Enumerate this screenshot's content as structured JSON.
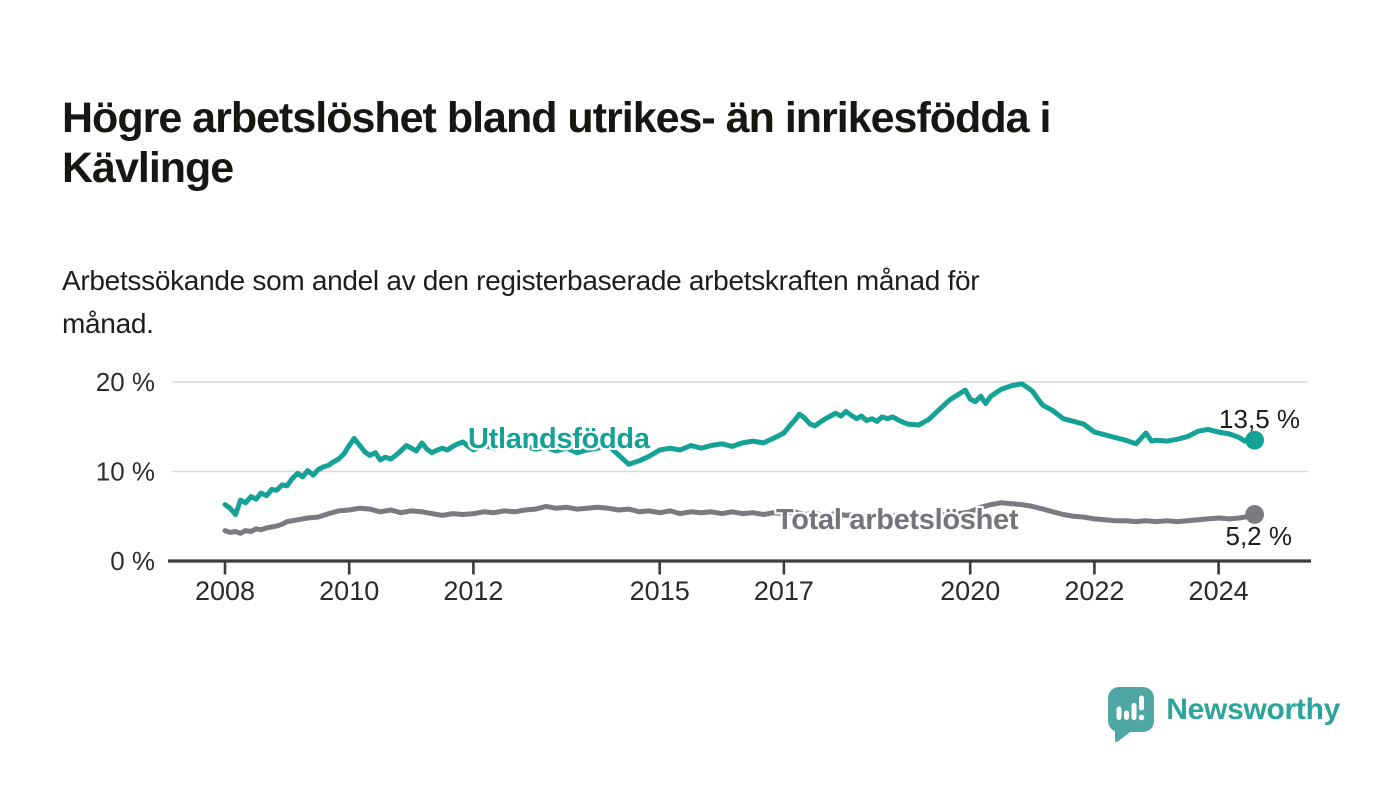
{
  "header": {
    "title_lines": [
      "Högre arbetslöshet bland utrikes- än inrikesfödda i",
      "Kävlinge"
    ],
    "subtitle_lines": [
      "Arbetssökande som andel av den registerbaserade arbetskraften månad för",
      "månad."
    ]
  },
  "chart_data": {
    "type": "line",
    "title": "Högre arbetslöshet bland utrikes- än inrikesfödda i Kävlinge",
    "subtitle": "Arbetssökande som andel av den registerbaserade arbetskraften månad för månad.",
    "unit": "%",
    "grid": "horizontal",
    "x_range": [
      2007.1,
      2025.4
    ],
    "y_range": [
      0,
      21
    ],
    "x_ticks": [
      2008,
      2010,
      2012,
      2015,
      2017,
      2020,
      2022,
      2024
    ],
    "y_ticks": [
      {
        "value": 0,
        "label": "0 %"
      },
      {
        "value": 10,
        "label": "10 %"
      },
      {
        "value": 20,
        "label": "20 %"
      }
    ],
    "series": [
      {
        "name": "Utlandsfödda",
        "label": "Utlandsfödda",
        "color": "#15a296",
        "end_label": "13,5 %",
        "end_value": 13.5,
        "points": [
          [
            2008.0,
            6.3
          ],
          [
            2008.08,
            5.9
          ],
          [
            2008.17,
            5.2
          ],
          [
            2008.25,
            6.8
          ],
          [
            2008.33,
            6.5
          ],
          [
            2008.42,
            7.2
          ],
          [
            2008.5,
            6.9
          ],
          [
            2008.58,
            7.6
          ],
          [
            2008.67,
            7.3
          ],
          [
            2008.75,
            8.0
          ],
          [
            2008.83,
            7.9
          ],
          [
            2008.92,
            8.5
          ],
          [
            2009.0,
            8.4
          ],
          [
            2009.08,
            9.2
          ],
          [
            2009.17,
            9.8
          ],
          [
            2009.25,
            9.4
          ],
          [
            2009.33,
            10.1
          ],
          [
            2009.42,
            9.6
          ],
          [
            2009.5,
            10.2
          ],
          [
            2009.58,
            10.5
          ],
          [
            2009.67,
            10.7
          ],
          [
            2009.75,
            11.1
          ],
          [
            2009.83,
            11.4
          ],
          [
            2009.92,
            12.0
          ],
          [
            2010.0,
            12.9
          ],
          [
            2010.08,
            13.7
          ],
          [
            2010.17,
            12.9
          ],
          [
            2010.25,
            12.2
          ],
          [
            2010.33,
            11.8
          ],
          [
            2010.42,
            12.1
          ],
          [
            2010.5,
            11.3
          ],
          [
            2010.58,
            11.6
          ],
          [
            2010.67,
            11.4
          ],
          [
            2010.75,
            11.8
          ],
          [
            2010.83,
            12.3
          ],
          [
            2010.92,
            12.9
          ],
          [
            2011.0,
            12.6
          ],
          [
            2011.08,
            12.3
          ],
          [
            2011.17,
            13.2
          ],
          [
            2011.25,
            12.5
          ],
          [
            2011.33,
            12.1
          ],
          [
            2011.42,
            12.4
          ],
          [
            2011.5,
            12.6
          ],
          [
            2011.58,
            12.4
          ],
          [
            2011.67,
            12.8
          ],
          [
            2011.75,
            13.1
          ],
          [
            2011.83,
            13.3
          ],
          [
            2011.92,
            12.8
          ],
          [
            2012.0,
            12.4
          ],
          [
            2012.17,
            12.9
          ],
          [
            2012.33,
            12.6
          ],
          [
            2012.5,
            12.9
          ],
          [
            2012.67,
            13.1
          ],
          [
            2012.83,
            12.8
          ],
          [
            2013.0,
            12.5
          ],
          [
            2013.17,
            12.7
          ],
          [
            2013.33,
            12.3
          ],
          [
            2013.5,
            12.6
          ],
          [
            2013.67,
            12.1
          ],
          [
            2013.83,
            12.4
          ],
          [
            2014.0,
            12.6
          ],
          [
            2014.17,
            12.9
          ],
          [
            2014.33,
            11.9
          ],
          [
            2014.5,
            10.8
          ],
          [
            2014.67,
            11.2
          ],
          [
            2014.83,
            11.7
          ],
          [
            2015.0,
            12.4
          ],
          [
            2015.17,
            12.6
          ],
          [
            2015.33,
            12.4
          ],
          [
            2015.5,
            12.9
          ],
          [
            2015.67,
            12.6
          ],
          [
            2015.83,
            12.9
          ],
          [
            2016.0,
            13.1
          ],
          [
            2016.17,
            12.8
          ],
          [
            2016.33,
            13.2
          ],
          [
            2016.5,
            13.4
          ],
          [
            2016.67,
            13.2
          ],
          [
            2016.83,
            13.7
          ],
          [
            2017.0,
            14.3
          ],
          [
            2017.08,
            15.0
          ],
          [
            2017.17,
            15.7
          ],
          [
            2017.25,
            16.4
          ],
          [
            2017.33,
            16.0
          ],
          [
            2017.42,
            15.3
          ],
          [
            2017.5,
            15.1
          ],
          [
            2017.58,
            15.5
          ],
          [
            2017.67,
            15.9
          ],
          [
            2017.75,
            16.2
          ],
          [
            2017.83,
            16.5
          ],
          [
            2017.92,
            16.2
          ],
          [
            2018.0,
            16.7
          ],
          [
            2018.08,
            16.3
          ],
          [
            2018.17,
            15.9
          ],
          [
            2018.25,
            16.2
          ],
          [
            2018.33,
            15.7
          ],
          [
            2018.42,
            15.9
          ],
          [
            2018.5,
            15.6
          ],
          [
            2018.58,
            16.1
          ],
          [
            2018.67,
            15.9
          ],
          [
            2018.75,
            16.1
          ],
          [
            2018.83,
            15.8
          ],
          [
            2018.92,
            15.5
          ],
          [
            2019.0,
            15.3
          ],
          [
            2019.17,
            15.2
          ],
          [
            2019.33,
            15.8
          ],
          [
            2019.5,
            16.9
          ],
          [
            2019.67,
            18.0
          ],
          [
            2019.83,
            18.7
          ],
          [
            2019.92,
            19.1
          ],
          [
            2020.0,
            18.1
          ],
          [
            2020.08,
            17.8
          ],
          [
            2020.17,
            18.4
          ],
          [
            2020.25,
            17.6
          ],
          [
            2020.33,
            18.4
          ],
          [
            2020.5,
            19.2
          ],
          [
            2020.67,
            19.6
          ],
          [
            2020.83,
            19.8
          ],
          [
            2020.92,
            19.4
          ],
          [
            2021.0,
            19.0
          ],
          [
            2021.08,
            18.2
          ],
          [
            2021.17,
            17.4
          ],
          [
            2021.33,
            16.8
          ],
          [
            2021.5,
            15.9
          ],
          [
            2021.67,
            15.6
          ],
          [
            2021.83,
            15.3
          ],
          [
            2022.0,
            14.4
          ],
          [
            2022.17,
            14.1
          ],
          [
            2022.33,
            13.8
          ],
          [
            2022.5,
            13.5
          ],
          [
            2022.67,
            13.1
          ],
          [
            2022.83,
            14.3
          ],
          [
            2022.92,
            13.4
          ],
          [
            2023.0,
            13.5
          ],
          [
            2023.17,
            13.4
          ],
          [
            2023.33,
            13.6
          ],
          [
            2023.5,
            13.9
          ],
          [
            2023.67,
            14.5
          ],
          [
            2023.83,
            14.7
          ],
          [
            2024.0,
            14.4
          ],
          [
            2024.17,
            14.2
          ],
          [
            2024.33,
            13.8
          ],
          [
            2024.42,
            13.4
          ],
          [
            2024.5,
            13.8
          ],
          [
            2024.58,
            13.5
          ]
        ]
      },
      {
        "name": "Total arbetslöshet",
        "label": "Total arbetslöshet",
        "color": "#7b7a80",
        "label_color": "#75747a",
        "end_label": "5,2 %",
        "end_value": 5.2,
        "points": [
          [
            2008.0,
            3.4
          ],
          [
            2008.08,
            3.2
          ],
          [
            2008.17,
            3.3
          ],
          [
            2008.25,
            3.1
          ],
          [
            2008.33,
            3.4
          ],
          [
            2008.42,
            3.3
          ],
          [
            2008.5,
            3.6
          ],
          [
            2008.58,
            3.5
          ],
          [
            2008.67,
            3.7
          ],
          [
            2008.75,
            3.8
          ],
          [
            2008.83,
            3.9
          ],
          [
            2008.92,
            4.1
          ],
          [
            2009.0,
            4.4
          ],
          [
            2009.17,
            4.6
          ],
          [
            2009.33,
            4.8
          ],
          [
            2009.5,
            4.9
          ],
          [
            2009.67,
            5.3
          ],
          [
            2009.83,
            5.6
          ],
          [
            2010.0,
            5.7
          ],
          [
            2010.17,
            5.9
          ],
          [
            2010.33,
            5.8
          ],
          [
            2010.5,
            5.5
          ],
          [
            2010.67,
            5.7
          ],
          [
            2010.83,
            5.4
          ],
          [
            2011.0,
            5.6
          ],
          [
            2011.17,
            5.5
          ],
          [
            2011.33,
            5.3
          ],
          [
            2011.5,
            5.1
          ],
          [
            2011.67,
            5.3
          ],
          [
            2011.83,
            5.2
          ],
          [
            2012.0,
            5.3
          ],
          [
            2012.17,
            5.5
          ],
          [
            2012.33,
            5.4
          ],
          [
            2012.5,
            5.6
          ],
          [
            2012.67,
            5.5
          ],
          [
            2012.83,
            5.7
          ],
          [
            2013.0,
            5.8
          ],
          [
            2013.17,
            6.1
          ],
          [
            2013.33,
            5.9
          ],
          [
            2013.5,
            6.0
          ],
          [
            2013.67,
            5.8
          ],
          [
            2013.83,
            5.9
          ],
          [
            2014.0,
            6.0
          ],
          [
            2014.17,
            5.9
          ],
          [
            2014.33,
            5.7
          ],
          [
            2014.5,
            5.8
          ],
          [
            2014.67,
            5.5
          ],
          [
            2014.83,
            5.6
          ],
          [
            2015.0,
            5.4
          ],
          [
            2015.17,
            5.6
          ],
          [
            2015.33,
            5.3
          ],
          [
            2015.5,
            5.5
          ],
          [
            2015.67,
            5.4
          ],
          [
            2015.83,
            5.5
          ],
          [
            2016.0,
            5.3
          ],
          [
            2016.17,
            5.5
          ],
          [
            2016.33,
            5.3
          ],
          [
            2016.5,
            5.4
          ],
          [
            2016.67,
            5.2
          ],
          [
            2016.83,
            5.4
          ],
          [
            2017.0,
            5.3
          ],
          [
            2017.17,
            5.5
          ],
          [
            2017.33,
            5.2
          ],
          [
            2017.5,
            5.3
          ],
          [
            2017.67,
            5.1
          ],
          [
            2017.83,
            5.3
          ],
          [
            2018.0,
            5.1
          ],
          [
            2018.17,
            5.2
          ],
          [
            2018.33,
            5.0
          ],
          [
            2018.5,
            5.2
          ],
          [
            2018.67,
            5.0
          ],
          [
            2018.83,
            5.1
          ],
          [
            2019.0,
            4.9
          ],
          [
            2019.17,
            5.1
          ],
          [
            2019.33,
            5.0
          ],
          [
            2019.5,
            5.2
          ],
          [
            2019.67,
            5.1
          ],
          [
            2019.83,
            5.3
          ],
          [
            2020.0,
            5.5
          ],
          [
            2020.17,
            6.0
          ],
          [
            2020.33,
            6.3
          ],
          [
            2020.5,
            6.5
          ],
          [
            2020.67,
            6.4
          ],
          [
            2020.83,
            6.3
          ],
          [
            2021.0,
            6.1
          ],
          [
            2021.17,
            5.8
          ],
          [
            2021.33,
            5.5
          ],
          [
            2021.5,
            5.2
          ],
          [
            2021.67,
            5.0
          ],
          [
            2021.83,
            4.9
          ],
          [
            2022.0,
            4.7
          ],
          [
            2022.17,
            4.6
          ],
          [
            2022.33,
            4.5
          ],
          [
            2022.5,
            4.5
          ],
          [
            2022.67,
            4.4
          ],
          [
            2022.83,
            4.5
          ],
          [
            2023.0,
            4.4
          ],
          [
            2023.17,
            4.5
          ],
          [
            2023.33,
            4.4
          ],
          [
            2023.5,
            4.5
          ],
          [
            2023.67,
            4.6
          ],
          [
            2023.83,
            4.7
          ],
          [
            2024.0,
            4.8
          ],
          [
            2024.17,
            4.7
          ],
          [
            2024.33,
            4.8
          ],
          [
            2024.42,
            4.9
          ],
          [
            2024.5,
            5.0
          ],
          [
            2024.58,
            5.2
          ]
        ]
      }
    ],
    "legend_position": "inline"
  },
  "footer": {
    "brand": "Newsworthy",
    "brand_text_color": "#2ba49b",
    "brand_mark_color": "#4ea7a2"
  },
  "colors": {
    "background": "#ffffff",
    "axis": "#3c3c3c",
    "grid": "#d8d8d8",
    "text": "#1d1d1b",
    "accent_teal": "#15a296",
    "accent_gray": "#7b7a80"
  }
}
